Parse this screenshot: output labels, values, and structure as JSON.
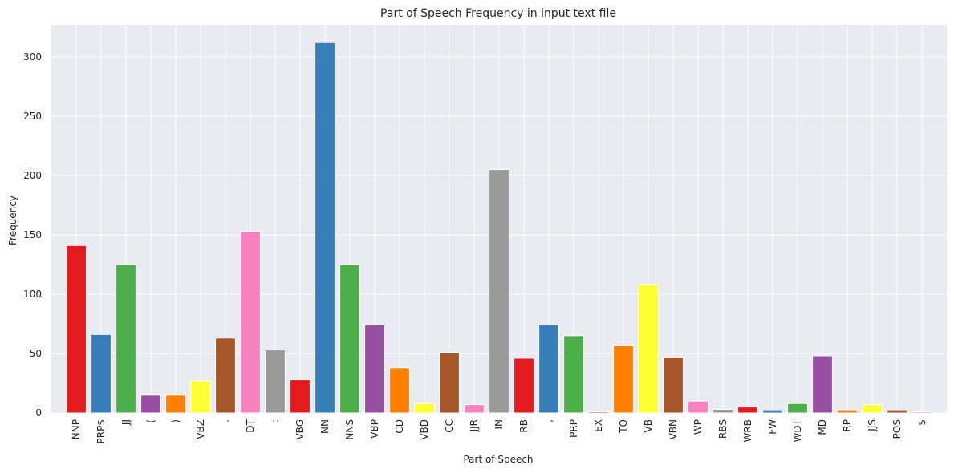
{
  "chart_data": {
    "type": "bar",
    "title": "Part of Speech Frequency in input text file",
    "xlabel": "Part of Speech",
    "ylabel": "Frequency",
    "ylim": [
      0,
      327
    ],
    "yticks": [
      0,
      50,
      100,
      150,
      200,
      250,
      300
    ],
    "grid": true,
    "legend": "none",
    "background_color": "#eaeaf2",
    "categories": [
      "NNP",
      "PRP$",
      "JJ",
      "(",
      ")",
      "VBZ",
      ".",
      "DT",
      ":",
      "VBG",
      "NN",
      "NNS",
      "VBP",
      "CD",
      "VBD",
      "CC",
      "JJR",
      "IN",
      "RB",
      ",",
      "PRP",
      "EX",
      "TO",
      "VB",
      "VBN",
      "WP",
      "RBS",
      "WRB",
      "FW",
      "WDT",
      "MD",
      "RP",
      "JJS",
      "POS",
      "$"
    ],
    "values": [
      141,
      66,
      125,
      15,
      15,
      27,
      63,
      153,
      53,
      28,
      312,
      125,
      74,
      38,
      8,
      51,
      7,
      205,
      46,
      74,
      65,
      1,
      57,
      108,
      47,
      10,
      3,
      5,
      2,
      8,
      48,
      2,
      7,
      2,
      1
    ],
    "colors": [
      "#e41a1c",
      "#377eb8",
      "#4daf4a",
      "#984ea3",
      "#ff7f00",
      "#ffff33",
      "#a65628",
      "#f781bf",
      "#999999"
    ]
  }
}
